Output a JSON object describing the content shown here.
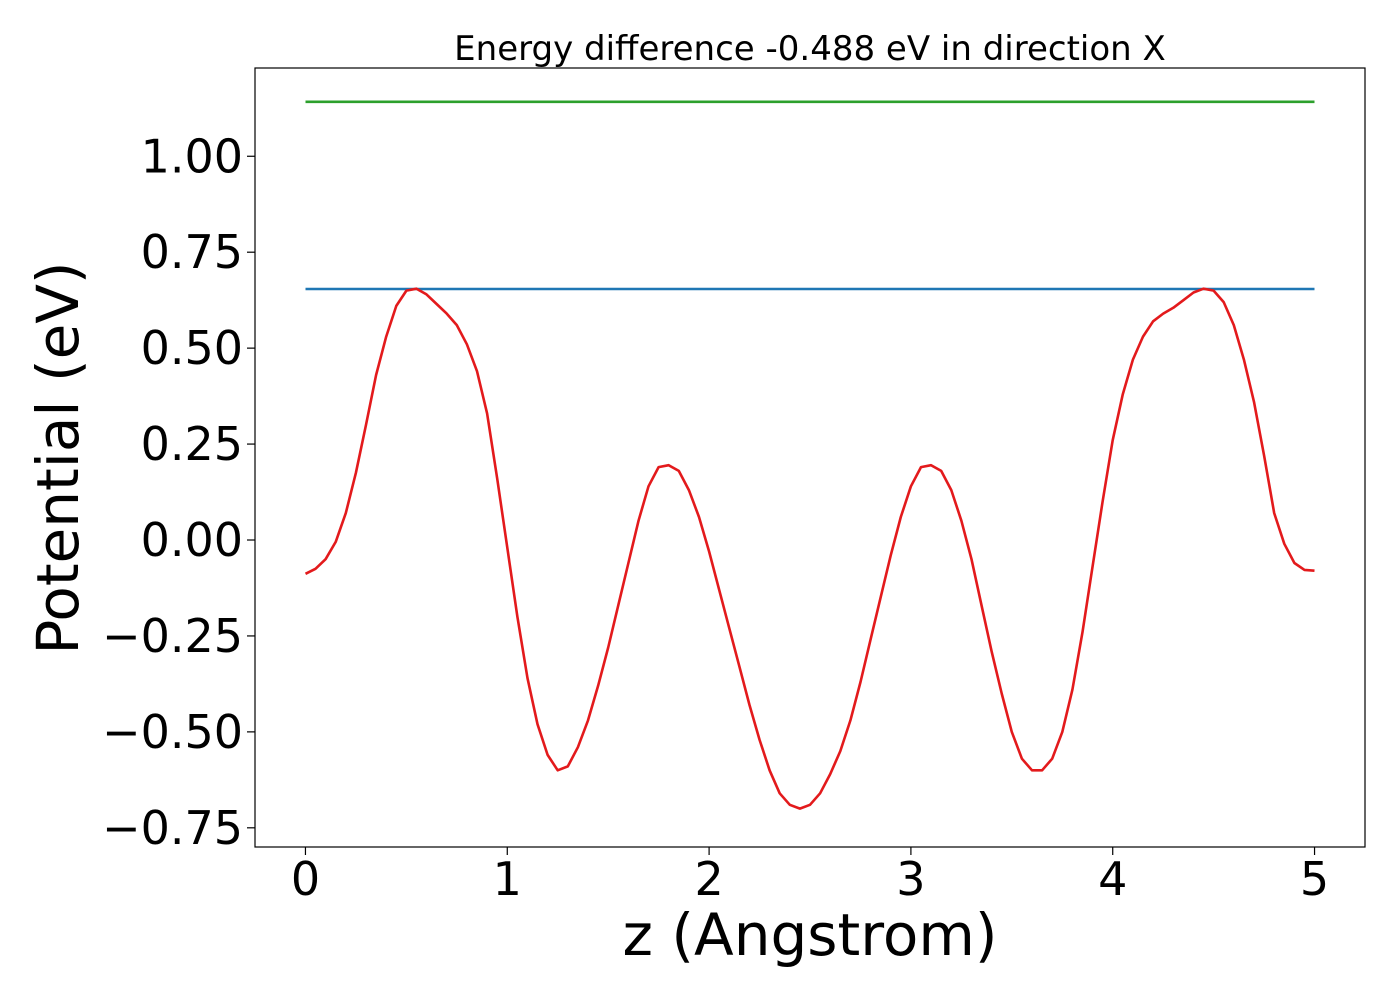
{
  "chart_data": {
    "type": "line",
    "title": "Energy difference -0.488 eV in direction X",
    "xlabel": "z (Angstrom)",
    "ylabel": "Potential (eV)",
    "xlim": [
      -0.25,
      5.25
    ],
    "ylim": [
      -0.8,
      1.23
    ],
    "xticks": [
      0,
      1,
      2,
      3,
      4,
      5
    ],
    "xtick_labels": [
      "0",
      "1",
      "2",
      "3",
      "4",
      "5"
    ],
    "yticks": [
      -0.75,
      -0.5,
      -0.25,
      0.0,
      0.25,
      0.5,
      0.75,
      1.0
    ],
    "ytick_labels": [
      "−0.75",
      "−0.50",
      "−0.25",
      "0.00",
      "0.25",
      "0.50",
      "0.75",
      "1.00"
    ],
    "grid": false,
    "legend": false,
    "series": [
      {
        "color": "#2ca02c",
        "x": [
          0,
          5
        ],
        "y": [
          1.142,
          1.142
        ]
      },
      {
        "color": "#1f77b4",
        "x": [
          0,
          5
        ],
        "y": [
          0.654,
          0.654
        ]
      },
      {
        "color": "#e31a1c",
        "x": [
          0,
          0.05,
          0.1,
          0.15,
          0.2,
          0.25,
          0.3,
          0.35,
          0.4,
          0.45,
          0.5,
          0.55,
          0.6,
          0.65,
          0.7,
          0.75,
          0.8,
          0.85,
          0.9,
          0.95,
          1.0,
          1.05,
          1.1,
          1.15,
          1.2,
          1.25,
          1.3,
          1.35,
          1.4,
          1.45,
          1.5,
          1.55,
          1.6,
          1.65,
          1.7,
          1.75,
          1.8,
          1.85,
          1.9,
          1.95,
          2.0,
          2.05,
          2.1,
          2.15,
          2.2,
          2.25,
          2.3,
          2.35,
          2.4,
          2.45,
          2.5,
          2.55,
          2.6,
          2.65,
          2.7,
          2.75,
          2.8,
          2.85,
          2.9,
          2.95,
          3.0,
          3.05,
          3.1,
          3.15,
          3.2,
          3.25,
          3.3,
          3.35,
          3.4,
          3.45,
          3.5,
          3.55,
          3.6,
          3.65,
          3.7,
          3.75,
          3.8,
          3.85,
          3.9,
          3.95,
          4.0,
          4.05,
          4.1,
          4.15,
          4.2,
          4.25,
          4.3,
          4.35,
          4.4,
          4.45,
          4.5,
          4.55,
          4.6,
          4.65,
          4.7,
          4.75,
          4.8,
          4.85,
          4.9,
          4.95,
          5.0
        ],
        "y": [
          -0.088,
          -0.075,
          -0.05,
          -0.005,
          0.07,
          0.175,
          0.3,
          0.43,
          0.53,
          0.61,
          0.65,
          0.655,
          0.64,
          0.615,
          0.59,
          0.56,
          0.51,
          0.44,
          0.33,
          0.16,
          -0.02,
          -0.2,
          -0.36,
          -0.48,
          -0.56,
          -0.6,
          -0.59,
          -0.54,
          -0.47,
          -0.38,
          -0.28,
          -0.17,
          -0.06,
          0.05,
          0.14,
          0.19,
          0.195,
          0.18,
          0.13,
          0.06,
          -0.03,
          -0.13,
          -0.23,
          -0.33,
          -0.43,
          -0.52,
          -0.6,
          -0.66,
          -0.69,
          -0.7,
          -0.69,
          -0.66,
          -0.61,
          -0.55,
          -0.47,
          -0.37,
          -0.26,
          -0.15,
          -0.04,
          0.06,
          0.14,
          0.19,
          0.195,
          0.18,
          0.13,
          0.05,
          -0.05,
          -0.17,
          -0.29,
          -0.4,
          -0.5,
          -0.57,
          -0.6,
          -0.6,
          -0.57,
          -0.5,
          -0.39,
          -0.24,
          -0.07,
          0.1,
          0.26,
          0.38,
          0.47,
          0.53,
          0.57,
          0.59,
          0.605,
          0.625,
          0.645,
          0.655,
          0.65,
          0.62,
          0.56,
          0.47,
          0.36,
          0.22,
          0.07,
          -0.01,
          -0.06,
          -0.078,
          -0.08
        ]
      }
    ]
  }
}
